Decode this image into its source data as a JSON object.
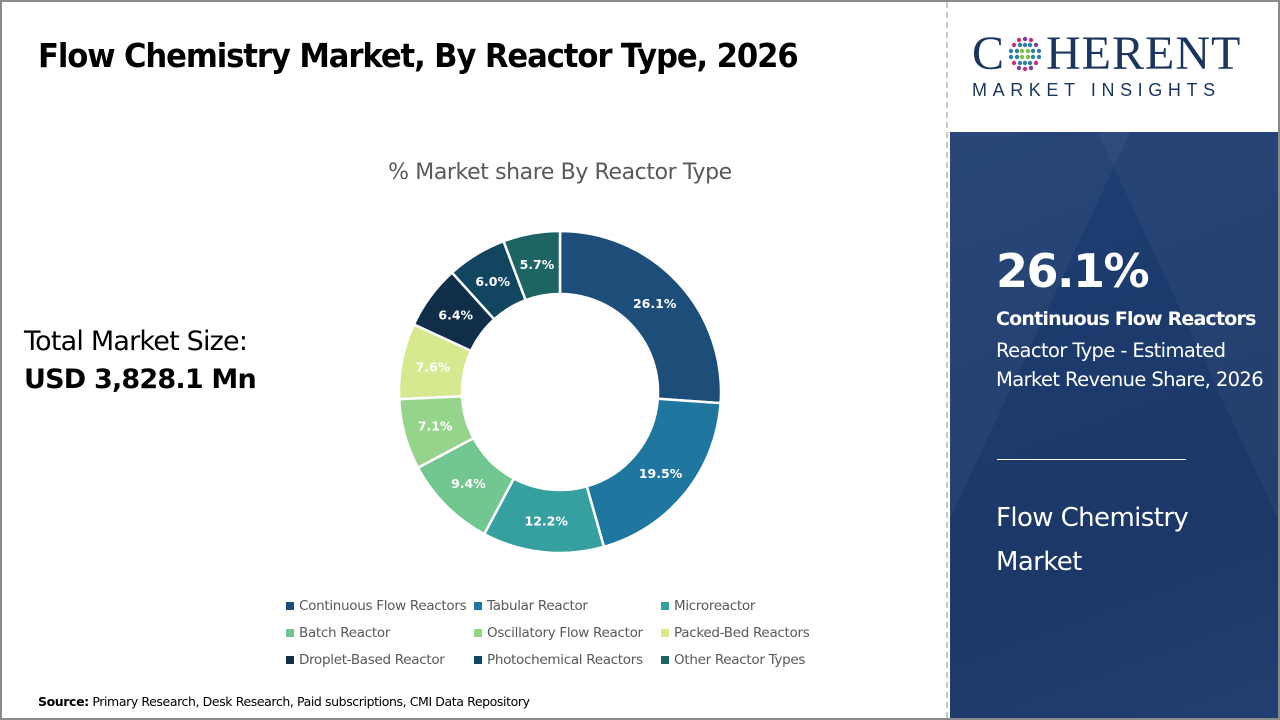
{
  "header": {
    "title": "Flow Chemistry Market, By Reactor Type, 2026"
  },
  "market_size": {
    "label": "Total Market Size:",
    "value": "USD 3,828.1 Mn"
  },
  "logo": {
    "brand_c": "C",
    "brand_rest": "HERENT",
    "tagline": "MARKET INSIGHTS"
  },
  "highlight": {
    "value": "26.1%",
    "segment": "Continuous Flow Reactors",
    "description": "Reactor Type - Estimated Market Revenue Share, 2026",
    "market_name": "Flow Chemistry Market"
  },
  "source": {
    "label": "Source:",
    "text": " Primary Research, Desk Research, Paid subscriptions, CMI Data Repository"
  },
  "colors": {
    "panel_blue": "#1c3a6c",
    "logo_navy": "#1c355e"
  },
  "chart_data": {
    "type": "pie",
    "subtype": "donut",
    "title": "% Market share By Reactor Type",
    "unit": "%",
    "start_angle": "12 o'clock, clockwise",
    "legend_position": "bottom",
    "categories": [
      "Continuous Flow Reactors",
      "Tabular Reactor",
      "Microreactor",
      "Batch Reactor",
      "Oscillatory Flow Reactor",
      "Packed-Bed Reactors",
      "Droplet-Based Reactor",
      "Photochemical Reactors",
      "Other Reactor Types"
    ],
    "values": [
      26.1,
      19.5,
      12.2,
      9.4,
      7.1,
      7.6,
      6.4,
      6.0,
      5.7
    ],
    "labels": [
      "26.1%",
      "19.5%",
      "12.2%",
      "9.4%",
      "7.1%",
      "7.6%",
      "6.4%",
      "6.0%",
      "5.7%"
    ],
    "colors": [
      "#1d4e7a",
      "#1f77a0",
      "#36a0a0",
      "#72c68f",
      "#95d48a",
      "#d6e98f",
      "#102d4a",
      "#124560",
      "#1e6464"
    ]
  }
}
